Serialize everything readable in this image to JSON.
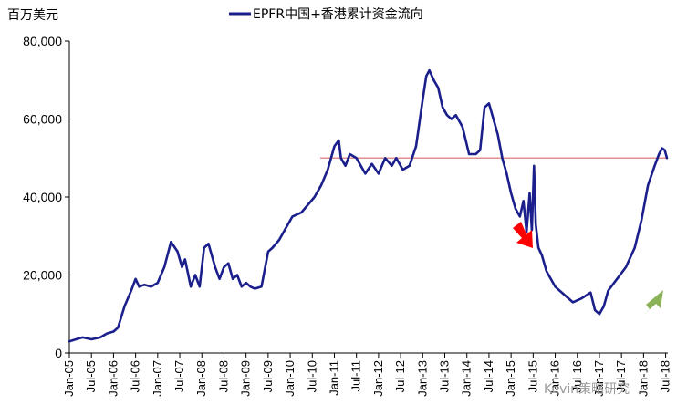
{
  "chart_data": {
    "type": "line",
    "unit_label": "百万美元",
    "legend": [
      "EPFR中国+香港累计资金流向"
    ],
    "ylim": [
      0,
      80000
    ],
    "yticks": [
      0,
      20000,
      40000,
      60000,
      80000
    ],
    "ytick_labels": [
      "0",
      "20,000",
      "40,000",
      "60,000",
      "80,000"
    ],
    "xtick_labels": [
      "Jan-05",
      "Jul-05",
      "Jan-06",
      "Jul-06",
      "Jan-07",
      "Jul-07",
      "Jan-08",
      "Jul-08",
      "Jan-09",
      "Jul-09",
      "Jan-10",
      "Jul-10",
      "Jan-11",
      "Jul-11",
      "Jan-12",
      "Jul-12",
      "Jan-13",
      "Jul-13",
      "Jan-14",
      "Jul-14",
      "Jan-15",
      "Jul-15",
      "Jan-16",
      "Jul-16",
      "Jan-17",
      "Jul-17",
      "Jan-18",
      "Jul-18"
    ],
    "series": [
      {
        "name": "EPFR中国+香港累计资金流向",
        "color": "#1a1f8c",
        "x": [
          2005.0,
          2005.15,
          2005.3,
          2005.5,
          2005.7,
          2005.85,
          2006.0,
          2006.1,
          2006.25,
          2006.4,
          2006.5,
          2006.58,
          2006.7,
          2006.85,
          2007.0,
          2007.15,
          2007.3,
          2007.45,
          2007.55,
          2007.62,
          2007.75,
          2007.85,
          2007.95,
          2008.05,
          2008.15,
          2008.3,
          2008.4,
          2008.5,
          2008.6,
          2008.7,
          2008.8,
          2008.9,
          2009.0,
          2009.1,
          2009.2,
          2009.35,
          2009.5,
          2009.6,
          2009.75,
          2009.9,
          2010.05,
          2010.25,
          2010.4,
          2010.55,
          2010.7,
          2010.85,
          2011.0,
          2011.1,
          2011.15,
          2011.25,
          2011.35,
          2011.5,
          2011.6,
          2011.7,
          2011.85,
          2012.0,
          2012.15,
          2012.3,
          2012.4,
          2012.55,
          2012.7,
          2012.85,
          2013.0,
          2013.08,
          2013.15,
          2013.25,
          2013.35,
          2013.45,
          2013.55,
          2013.65,
          2013.75,
          2013.9,
          2014.05,
          2014.2,
          2014.3,
          2014.4,
          2014.5,
          2014.6,
          2014.7,
          2014.8,
          2014.9,
          2015.0,
          2015.1,
          2015.2,
          2015.28,
          2015.35,
          2015.42,
          2015.47,
          2015.52,
          2015.56,
          2015.62,
          2015.7,
          2015.8,
          2016.0,
          2016.2,
          2016.4,
          2016.6,
          2016.8,
          2016.9,
          2017.0,
          2017.1,
          2017.2,
          2017.4,
          2017.6,
          2017.8,
          2017.95,
          2018.1,
          2018.25,
          2018.35,
          2018.42,
          2018.48,
          2018.53
        ],
        "y": [
          3000,
          3500,
          4000,
          3500,
          4000,
          5000,
          5500,
          6500,
          12000,
          16000,
          19000,
          17000,
          17500,
          17000,
          18000,
          22000,
          28500,
          26000,
          22000,
          24000,
          17000,
          20000,
          17000,
          27000,
          28000,
          22000,
          19000,
          22000,
          23000,
          19000,
          20000,
          17000,
          18000,
          17000,
          16500,
          17000,
          26000,
          27000,
          29000,
          32000,
          35000,
          36000,
          38000,
          40000,
          43000,
          47000,
          53000,
          54500,
          50000,
          48000,
          51000,
          50000,
          48000,
          46000,
          48500,
          46000,
          50000,
          48000,
          50000,
          47000,
          48000,
          53000,
          65000,
          71000,
          72500,
          70000,
          68000,
          63000,
          61000,
          60000,
          61000,
          58000,
          51000,
          51000,
          52000,
          63000,
          64000,
          60000,
          56000,
          50000,
          46000,
          41000,
          37000,
          35000,
          39000,
          31000,
          41000,
          31500,
          48000,
          33000,
          27000,
          25000,
          21000,
          17000,
          15000,
          13000,
          14000,
          15500,
          11000,
          10000,
          12000,
          16000,
          19000,
          22000,
          27000,
          34000,
          43000,
          48000,
          51000,
          52500,
          52000,
          50000
        ]
      }
    ],
    "reference_line": {
      "y": 50000,
      "color": "#e0908f"
    },
    "arrows": [
      {
        "label": "red-arrow",
        "color": "#ff0000"
      },
      {
        "label": "green-arrow",
        "color": "#8db35a"
      }
    ],
    "watermark": "Kevin策略研究",
    "grid": false,
    "legend_position": "top-center"
  }
}
